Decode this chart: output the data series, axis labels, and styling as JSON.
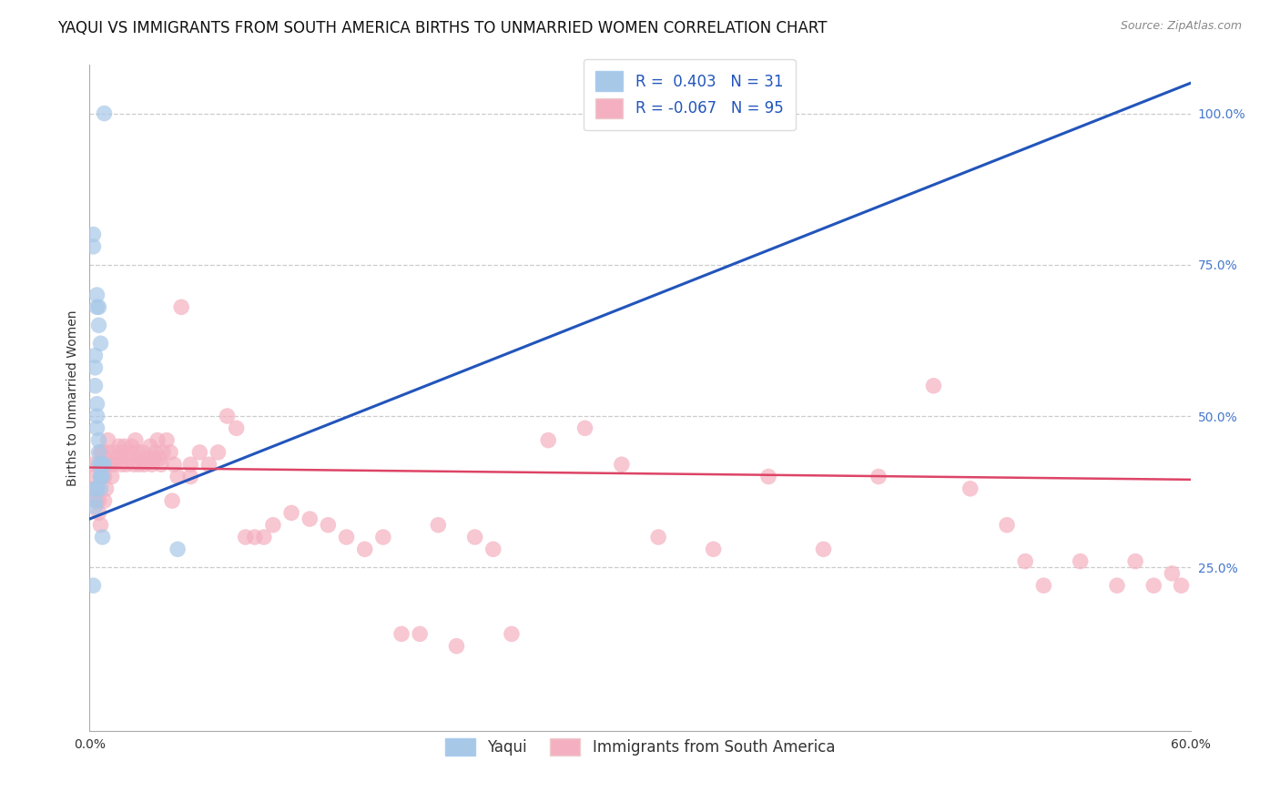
{
  "title": "YAQUI VS IMMIGRANTS FROM SOUTH AMERICA BIRTHS TO UNMARRIED WOMEN CORRELATION CHART",
  "source": "Source: ZipAtlas.com",
  "ylabel": "Births to Unmarried Women",
  "yaxis_ticks": [
    "25.0%",
    "50.0%",
    "75.0%",
    "100.0%"
  ],
  "yaxis_tick_vals": [
    0.25,
    0.5,
    0.75,
    1.0
  ],
  "xmin": 0.0,
  "xmax": 0.6,
  "ymin": -0.02,
  "ymax": 1.08,
  "legend_blue_label": "Yaqui",
  "legend_pink_label": "Immigrants from South America",
  "R_blue": 0.403,
  "N_blue": 31,
  "R_pink": -0.067,
  "N_pink": 95,
  "blue_color": "#a8c8e8",
  "pink_color": "#f4b0c0",
  "blue_line_color": "#2255bb",
  "pink_line_color": "#dd4466",
  "blue_scatter_x": [
    0.008,
    0.002,
    0.004,
    0.004,
    0.005,
    0.005,
    0.006,
    0.003,
    0.003,
    0.003,
    0.004,
    0.004,
    0.004,
    0.005,
    0.005,
    0.005,
    0.006,
    0.006,
    0.006,
    0.006,
    0.003,
    0.003,
    0.003,
    0.007,
    0.007,
    0.004,
    0.007,
    0.048,
    0.002,
    0.008,
    0.002
  ],
  "blue_scatter_y": [
    1.0,
    0.8,
    0.7,
    0.68,
    0.68,
    0.65,
    0.62,
    0.6,
    0.58,
    0.55,
    0.52,
    0.5,
    0.48,
    0.46,
    0.44,
    0.42,
    0.42,
    0.4,
    0.4,
    0.38,
    0.38,
    0.36,
    0.35,
    0.42,
    0.4,
    0.38,
    0.3,
    0.28,
    0.22,
    0.42,
    0.78
  ],
  "pink_scatter_x": [
    0.002,
    0.003,
    0.004,
    0.005,
    0.006,
    0.007,
    0.008,
    0.009,
    0.01,
    0.01,
    0.011,
    0.012,
    0.013,
    0.014,
    0.015,
    0.016,
    0.017,
    0.018,
    0.019,
    0.02,
    0.021,
    0.022,
    0.023,
    0.024,
    0.025,
    0.026,
    0.027,
    0.028,
    0.029,
    0.03,
    0.032,
    0.033,
    0.034,
    0.035,
    0.036,
    0.037,
    0.038,
    0.039,
    0.04,
    0.042,
    0.044,
    0.046,
    0.048,
    0.05,
    0.055,
    0.06,
    0.065,
    0.07,
    0.075,
    0.08,
    0.085,
    0.09,
    0.095,
    0.1,
    0.11,
    0.12,
    0.13,
    0.14,
    0.15,
    0.16,
    0.17,
    0.18,
    0.19,
    0.2,
    0.21,
    0.22,
    0.23,
    0.25,
    0.27,
    0.29,
    0.31,
    0.34,
    0.37,
    0.4,
    0.43,
    0.46,
    0.48,
    0.5,
    0.51,
    0.52,
    0.54,
    0.56,
    0.57,
    0.58,
    0.59,
    0.595,
    0.003,
    0.004,
    0.005,
    0.006,
    0.007,
    0.008,
    0.035,
    0.045,
    0.055
  ],
  "pink_scatter_y": [
    0.42,
    0.4,
    0.38,
    0.36,
    0.44,
    0.42,
    0.4,
    0.38,
    0.44,
    0.46,
    0.42,
    0.4,
    0.42,
    0.44,
    0.43,
    0.45,
    0.42,
    0.44,
    0.45,
    0.42,
    0.43,
    0.44,
    0.45,
    0.42,
    0.46,
    0.44,
    0.42,
    0.43,
    0.44,
    0.42,
    0.43,
    0.45,
    0.42,
    0.43,
    0.44,
    0.46,
    0.43,
    0.42,
    0.44,
    0.46,
    0.44,
    0.42,
    0.4,
    0.68,
    0.42,
    0.44,
    0.42,
    0.44,
    0.5,
    0.48,
    0.3,
    0.3,
    0.3,
    0.32,
    0.34,
    0.33,
    0.32,
    0.3,
    0.28,
    0.3,
    0.14,
    0.14,
    0.32,
    0.12,
    0.3,
    0.28,
    0.14,
    0.46,
    0.48,
    0.42,
    0.3,
    0.28,
    0.4,
    0.28,
    0.4,
    0.55,
    0.38,
    0.32,
    0.26,
    0.22,
    0.26,
    0.22,
    0.26,
    0.22,
    0.24,
    0.22,
    0.38,
    0.36,
    0.34,
    0.32,
    0.44,
    0.36,
    0.43,
    0.36,
    0.4
  ],
  "blue_line_x0": 0.0,
  "blue_line_y0": 0.33,
  "blue_line_x1": 0.6,
  "blue_line_y1": 1.05,
  "pink_line_x0": 0.0,
  "pink_line_y0": 0.415,
  "pink_line_x1": 0.6,
  "pink_line_y1": 0.395,
  "title_fontsize": 12,
  "axis_label_fontsize": 10,
  "tick_fontsize": 10,
  "legend_fontsize": 12
}
